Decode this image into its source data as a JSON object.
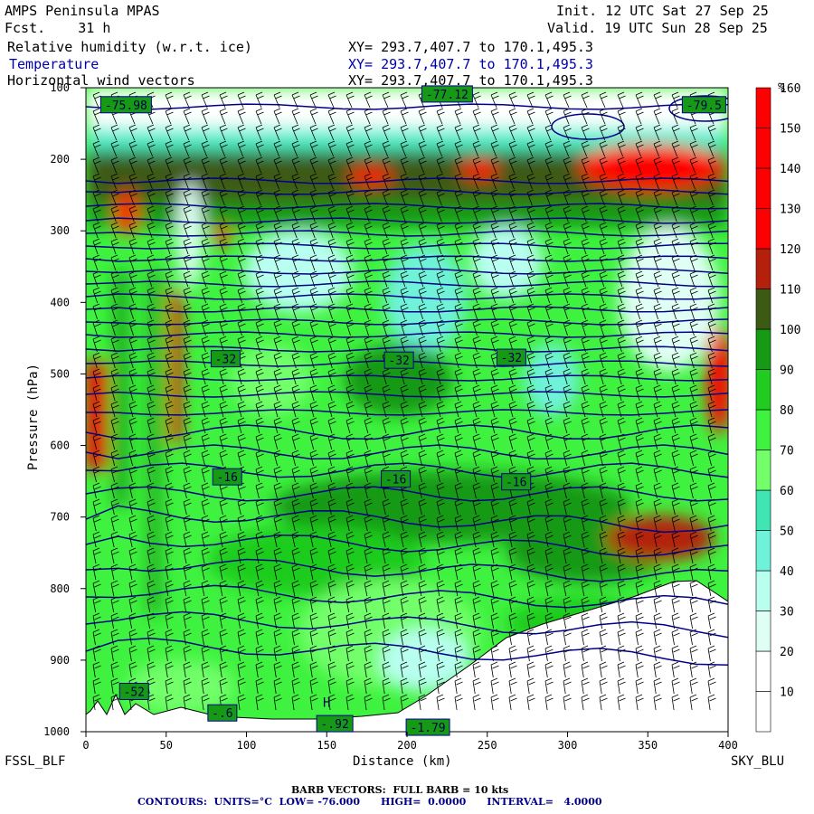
{
  "header": {
    "model": "AMPS Peninsula MPAS",
    "fcst": "Fcst.    31 h",
    "init": "Init. 12 UTC Sat 27 Sep 25",
    "valid": "Valid. 19 UTC Sun 28 Sep 25",
    "field1": "Relative humidity (w.r.t. ice)",
    "field2": "Temperature",
    "field3": "Horizontal wind vectors",
    "xy1": "XY= 293.7,407.7 to 170.1,495.3",
    "xy2": "XY= 293.7,407.7 to 170.1,495.3",
    "xy3": "XY= 293.7,407.7 to 170.1,495.3"
  },
  "chart_data": {
    "type": "heatmap",
    "xlabel": "Distance (km)",
    "ylabel": "Pressure (hPa)",
    "xlim": [
      0,
      400
    ],
    "ylim": [
      1000,
      100
    ],
    "x_ticks": [
      0,
      50,
      100,
      150,
      200,
      250,
      300,
      350,
      400
    ],
    "y_ticks": [
      100,
      200,
      300,
      400,
      500,
      600,
      700,
      800,
      900,
      1000
    ],
    "left_endpoint": "FSSL_BLF",
    "right_endpoint": "SKY_BLU",
    "colorbar": {
      "unit": "%",
      "levels": [
        10,
        20,
        30,
        40,
        50,
        60,
        70,
        80,
        90,
        100,
        110,
        120,
        130,
        140,
        150,
        160
      ],
      "colors": [
        "#ffffff",
        "#ffffff",
        "#e0fff4",
        "#b8fff0",
        "#6ff2da",
        "#3fe6b4",
        "#72ff6a",
        "#3ff23f",
        "#1fcc1f",
        "#169a16",
        "#3c5a14",
        "#b4200c",
        "#ff0000",
        "#ff0000",
        "#ff0000",
        "#ff0000"
      ]
    },
    "temperature_contour_labels": [
      {
        "label": "-75.98",
        "x": 25,
        "p": 125
      },
      {
        "label": "-77.12",
        "x": 225,
        "p": 110
      },
      {
        "label": "-79.5",
        "x": 385,
        "p": 125
      },
      {
        "label": "-32",
        "x": 87,
        "p": 480
      },
      {
        "label": "-32",
        "x": 195,
        "p": 482
      },
      {
        "label": "-32",
        "x": 265,
        "p": 478
      },
      {
        "label": "-16",
        "x": 88,
        "p": 645
      },
      {
        "label": "-16",
        "x": 193,
        "p": 648
      },
      {
        "label": "-16",
        "x": 268,
        "p": 652
      },
      {
        "label": "-52",
        "x": 30,
        "p": 945
      },
      {
        "label": "-.6",
        "x": 85,
        "p": 975
      },
      {
        "label": "-.92",
        "x": 155,
        "p": 990
      },
      {
        "label": "-1.79",
        "x": 213,
        "p": 995
      }
    ],
    "highs": [
      {
        "label": "H",
        "x": 150,
        "p": 965
      }
    ]
  },
  "footer": {
    "barbs": "BARB VECTORS:  FULL BARB = 10 kts",
    "contours": "CONTOURS:  UNITS=°C  LOW= -76.000      HIGH=  0.0000      INTERVAL=   4.0000"
  }
}
